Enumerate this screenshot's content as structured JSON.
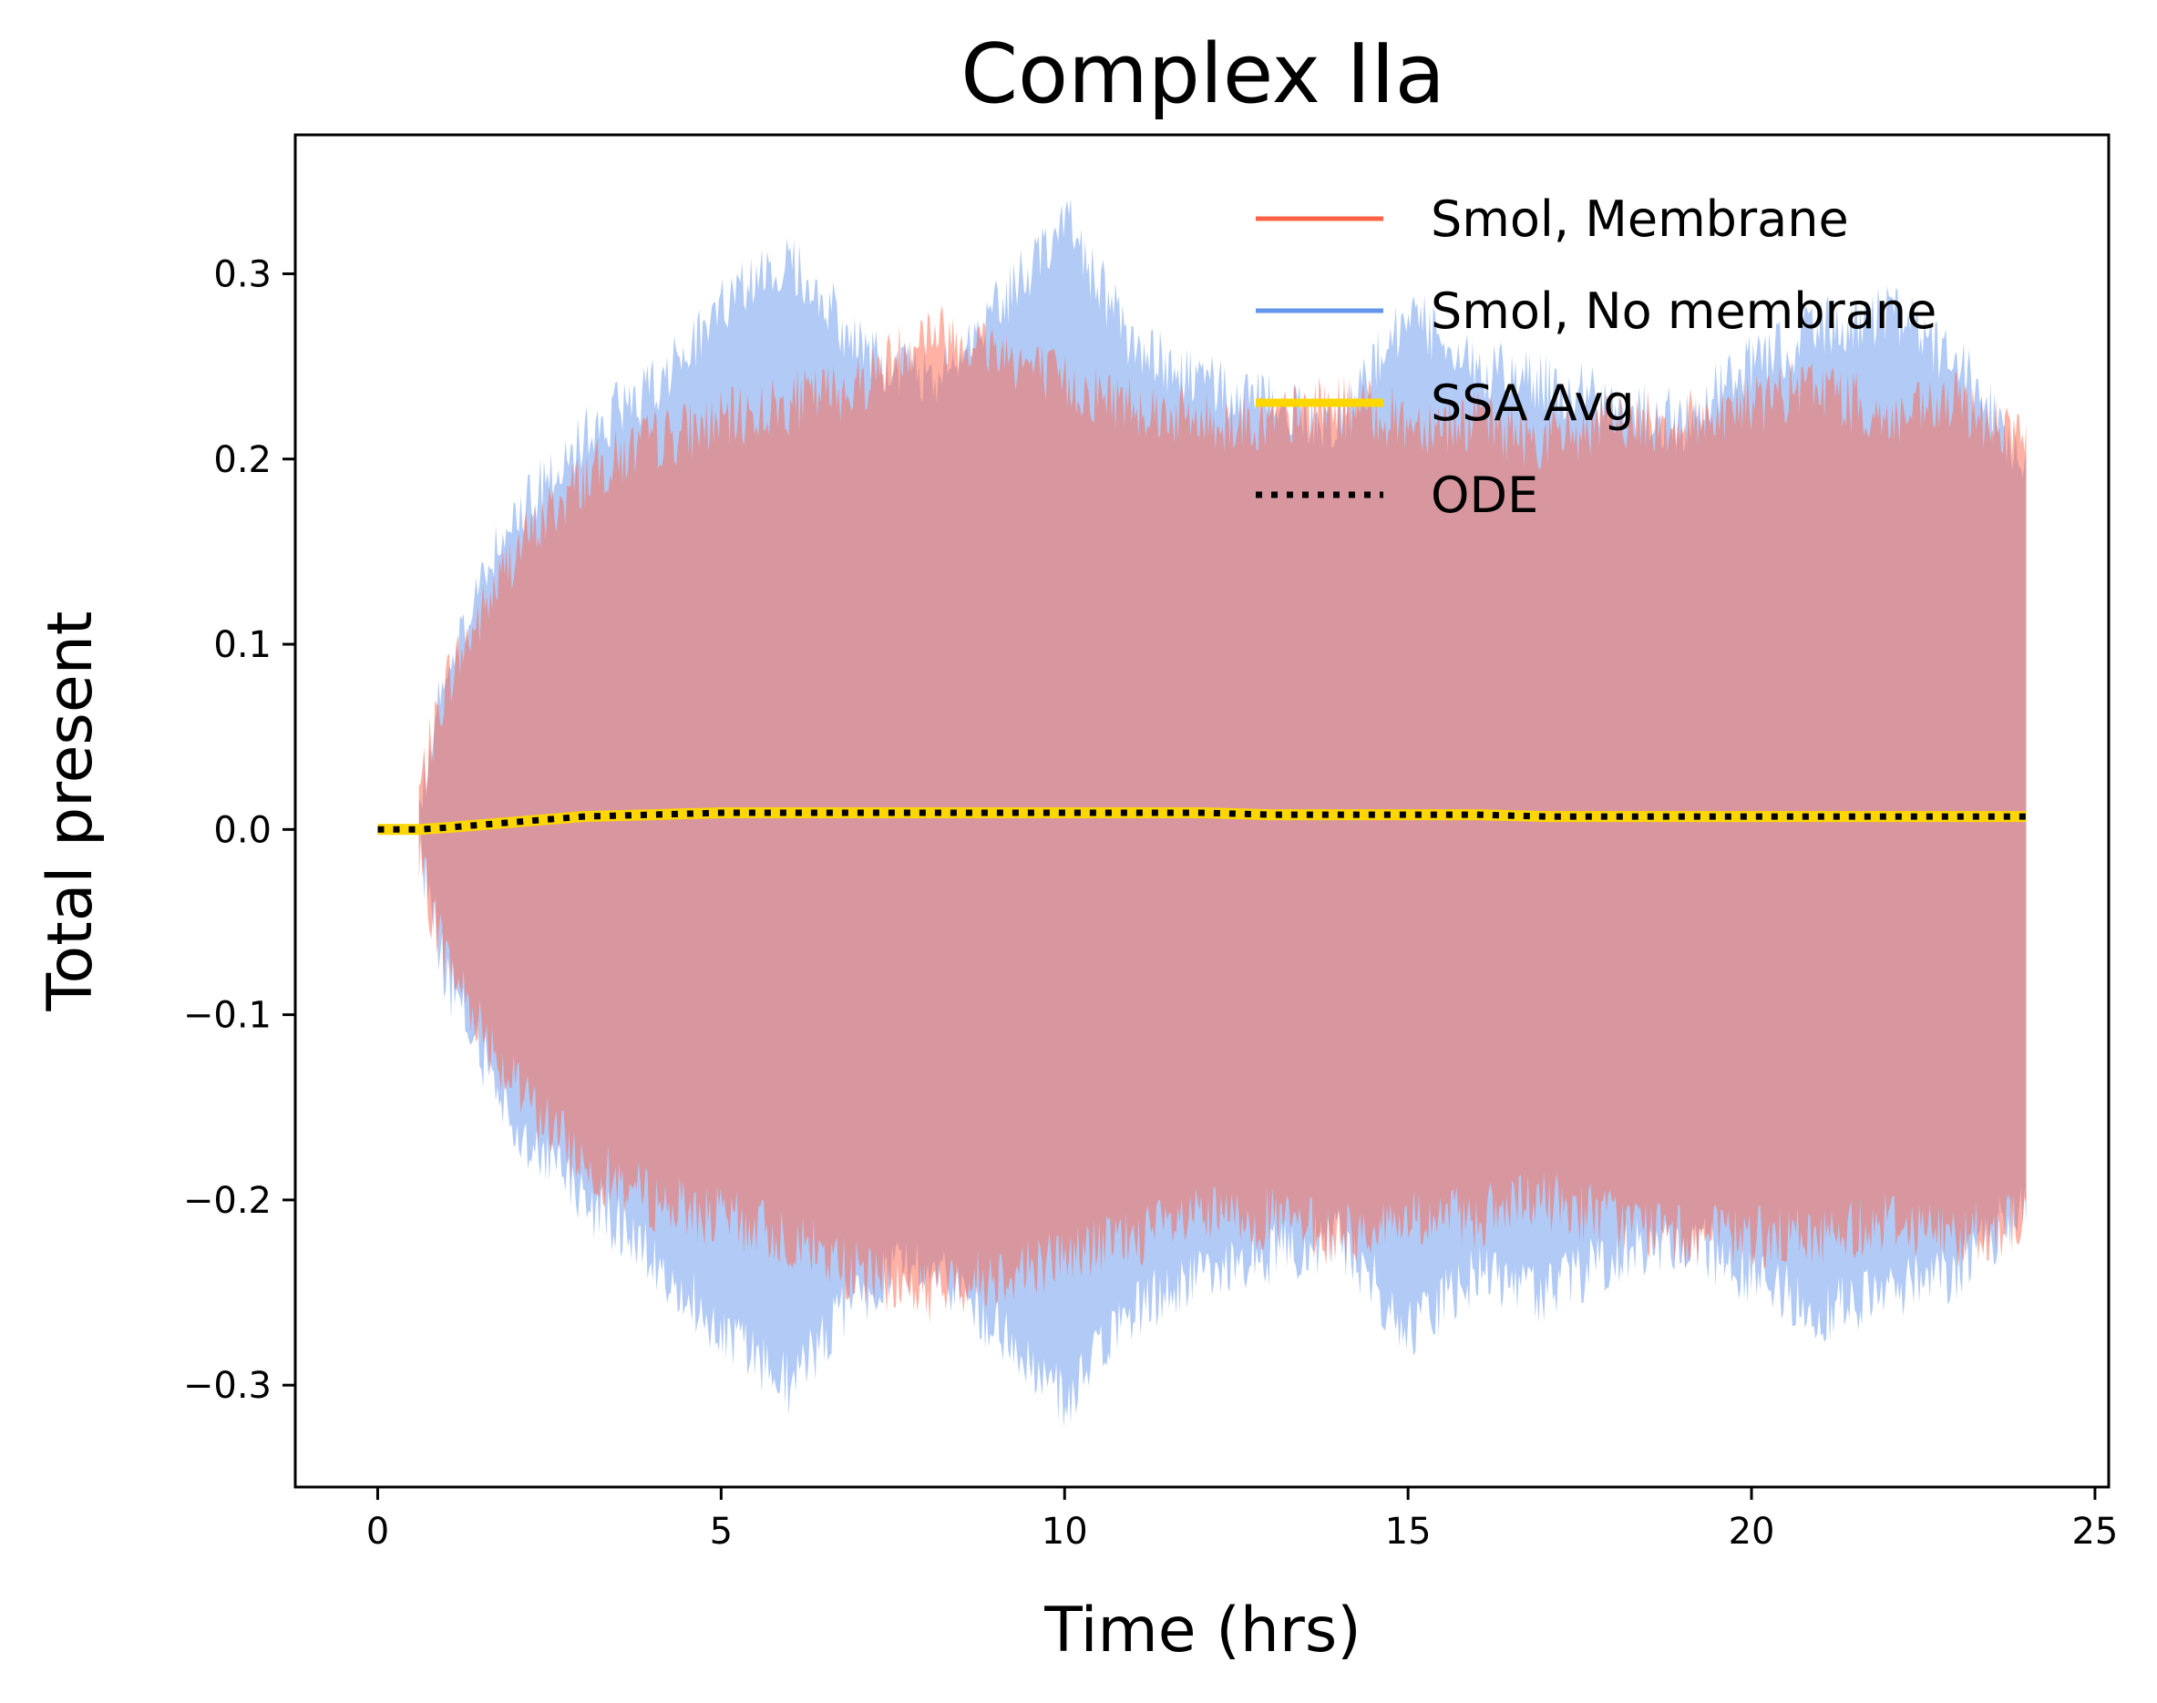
{
  "chart_data": {
    "type": "line",
    "title": "Complex IIa",
    "xlabel": "Time (hrs)",
    "ylabel": "Total present",
    "xlim": [
      -1.2,
      25.2
    ],
    "ylim": [
      -0.355,
      0.375
    ],
    "xticks": [
      0,
      5,
      10,
      15,
      20,
      25
    ],
    "xtick_labels": [
      "0",
      "5",
      "10",
      "15",
      "20",
      "25"
    ],
    "yticks": [
      -0.3,
      -0.2,
      -0.1,
      0.0,
      0.1,
      0.2,
      0.3
    ],
    "ytick_labels": [
      "−0.3",
      "−0.2",
      "−0.1",
      "0.0",
      "0.1",
      "0.2",
      "0.3"
    ],
    "grid": false,
    "legend_position": "top-right",
    "series": [
      {
        "name": "Smol, Membrane",
        "color": "#ff6347",
        "style": "solid",
        "x": [
          0,
          0.6,
          1,
          2,
          3,
          4,
          5,
          6,
          7,
          8,
          9,
          10,
          11,
          12,
          13,
          14,
          15,
          16,
          17,
          18,
          19,
          20,
          21,
          22,
          23,
          24
        ],
        "mean": [
          0.0,
          0.0,
          0.001,
          0.004,
          0.007,
          0.008,
          0.009,
          0.009,
          0.01,
          0.01,
          0.009,
          0.009,
          0.009,
          0.009,
          0.008,
          0.008,
          0.008,
          0.008,
          0.007,
          0.007,
          0.007,
          0.007,
          0.007,
          0.007,
          0.007,
          0.007
        ],
        "band_upper": [
          0.0,
          0.02,
          0.08,
          0.15,
          0.19,
          0.21,
          0.22,
          0.23,
          0.24,
          0.27,
          0.26,
          0.24,
          0.23,
          0.22,
          0.22,
          0.23,
          0.22,
          0.22,
          0.21,
          0.22,
          0.22,
          0.23,
          0.24,
          0.22,
          0.23,
          0.21
        ],
        "band_lower": [
          0.0,
          -0.02,
          -0.07,
          -0.14,
          -0.18,
          -0.2,
          -0.21,
          -0.22,
          -0.24,
          -0.25,
          -0.24,
          -0.23,
          -0.22,
          -0.21,
          -0.21,
          -0.22,
          -0.21,
          -0.21,
          -0.2,
          -0.21,
          -0.22,
          -0.22,
          -0.22,
          -0.21,
          -0.22,
          -0.21
        ]
      },
      {
        "name": "Smol, No membrane",
        "color": "#6495ed",
        "style": "solid",
        "x": [
          0,
          0.6,
          1,
          2,
          3,
          4,
          5,
          6,
          7,
          8,
          9,
          10,
          11,
          12,
          13,
          14,
          15,
          16,
          17,
          18,
          19,
          20,
          21,
          22,
          23,
          24
        ],
        "mean": [
          0.0,
          0.0,
          0.001,
          0.004,
          0.007,
          0.008,
          0.009,
          0.009,
          0.01,
          0.009,
          0.009,
          0.009,
          0.009,
          0.009,
          0.008,
          0.008,
          0.008,
          0.008,
          0.007,
          0.007,
          0.007,
          0.007,
          0.007,
          0.007,
          0.007,
          0.007
        ],
        "band_upper": [
          0.0,
          0.01,
          0.09,
          0.17,
          0.21,
          0.24,
          0.28,
          0.31,
          0.26,
          0.24,
          0.28,
          0.33,
          0.26,
          0.24,
          0.23,
          0.22,
          0.28,
          0.25,
          0.24,
          0.23,
          0.22,
          0.25,
          0.27,
          0.28,
          0.25,
          0.2
        ],
        "band_lower": [
          0.0,
          -0.01,
          -0.08,
          -0.16,
          -0.2,
          -0.23,
          -0.27,
          -0.3,
          -0.25,
          -0.23,
          -0.27,
          -0.31,
          -0.26,
          -0.24,
          -0.23,
          -0.22,
          -0.27,
          -0.24,
          -0.25,
          -0.23,
          -0.22,
          -0.24,
          -0.26,
          -0.25,
          -0.24,
          -0.2
        ]
      },
      {
        "name": "SSA Avg",
        "color": "#ffd700",
        "style": "solid",
        "x": [
          0,
          0.6,
          1,
          2,
          3,
          4,
          5,
          6,
          7,
          8,
          9,
          10,
          11,
          12,
          13,
          14,
          15,
          16,
          17,
          18,
          19,
          20,
          21,
          22,
          23,
          24
        ],
        "y": [
          0.0,
          0.0,
          0.001,
          0.004,
          0.007,
          0.008,
          0.009,
          0.009,
          0.009,
          0.009,
          0.009,
          0.009,
          0.009,
          0.009,
          0.008,
          0.008,
          0.008,
          0.008,
          0.007,
          0.007,
          0.007,
          0.007,
          0.007,
          0.007,
          0.007,
          0.007
        ]
      },
      {
        "name": "ODE",
        "color": "#000000",
        "style": "dotted",
        "x": [
          0,
          0.6,
          1,
          2,
          3,
          4,
          5,
          6,
          7,
          8,
          9,
          10,
          11,
          12,
          13,
          14,
          15,
          16,
          17,
          18,
          19,
          20,
          21,
          22,
          23,
          24
        ],
        "y": [
          0.0,
          0.0,
          0.001,
          0.004,
          0.007,
          0.008,
          0.009,
          0.009,
          0.009,
          0.009,
          0.009,
          0.009,
          0.009,
          0.009,
          0.008,
          0.008,
          0.008,
          0.008,
          0.007,
          0.007,
          0.007,
          0.007,
          0.007,
          0.007,
          0.007,
          0.007
        ]
      }
    ]
  }
}
